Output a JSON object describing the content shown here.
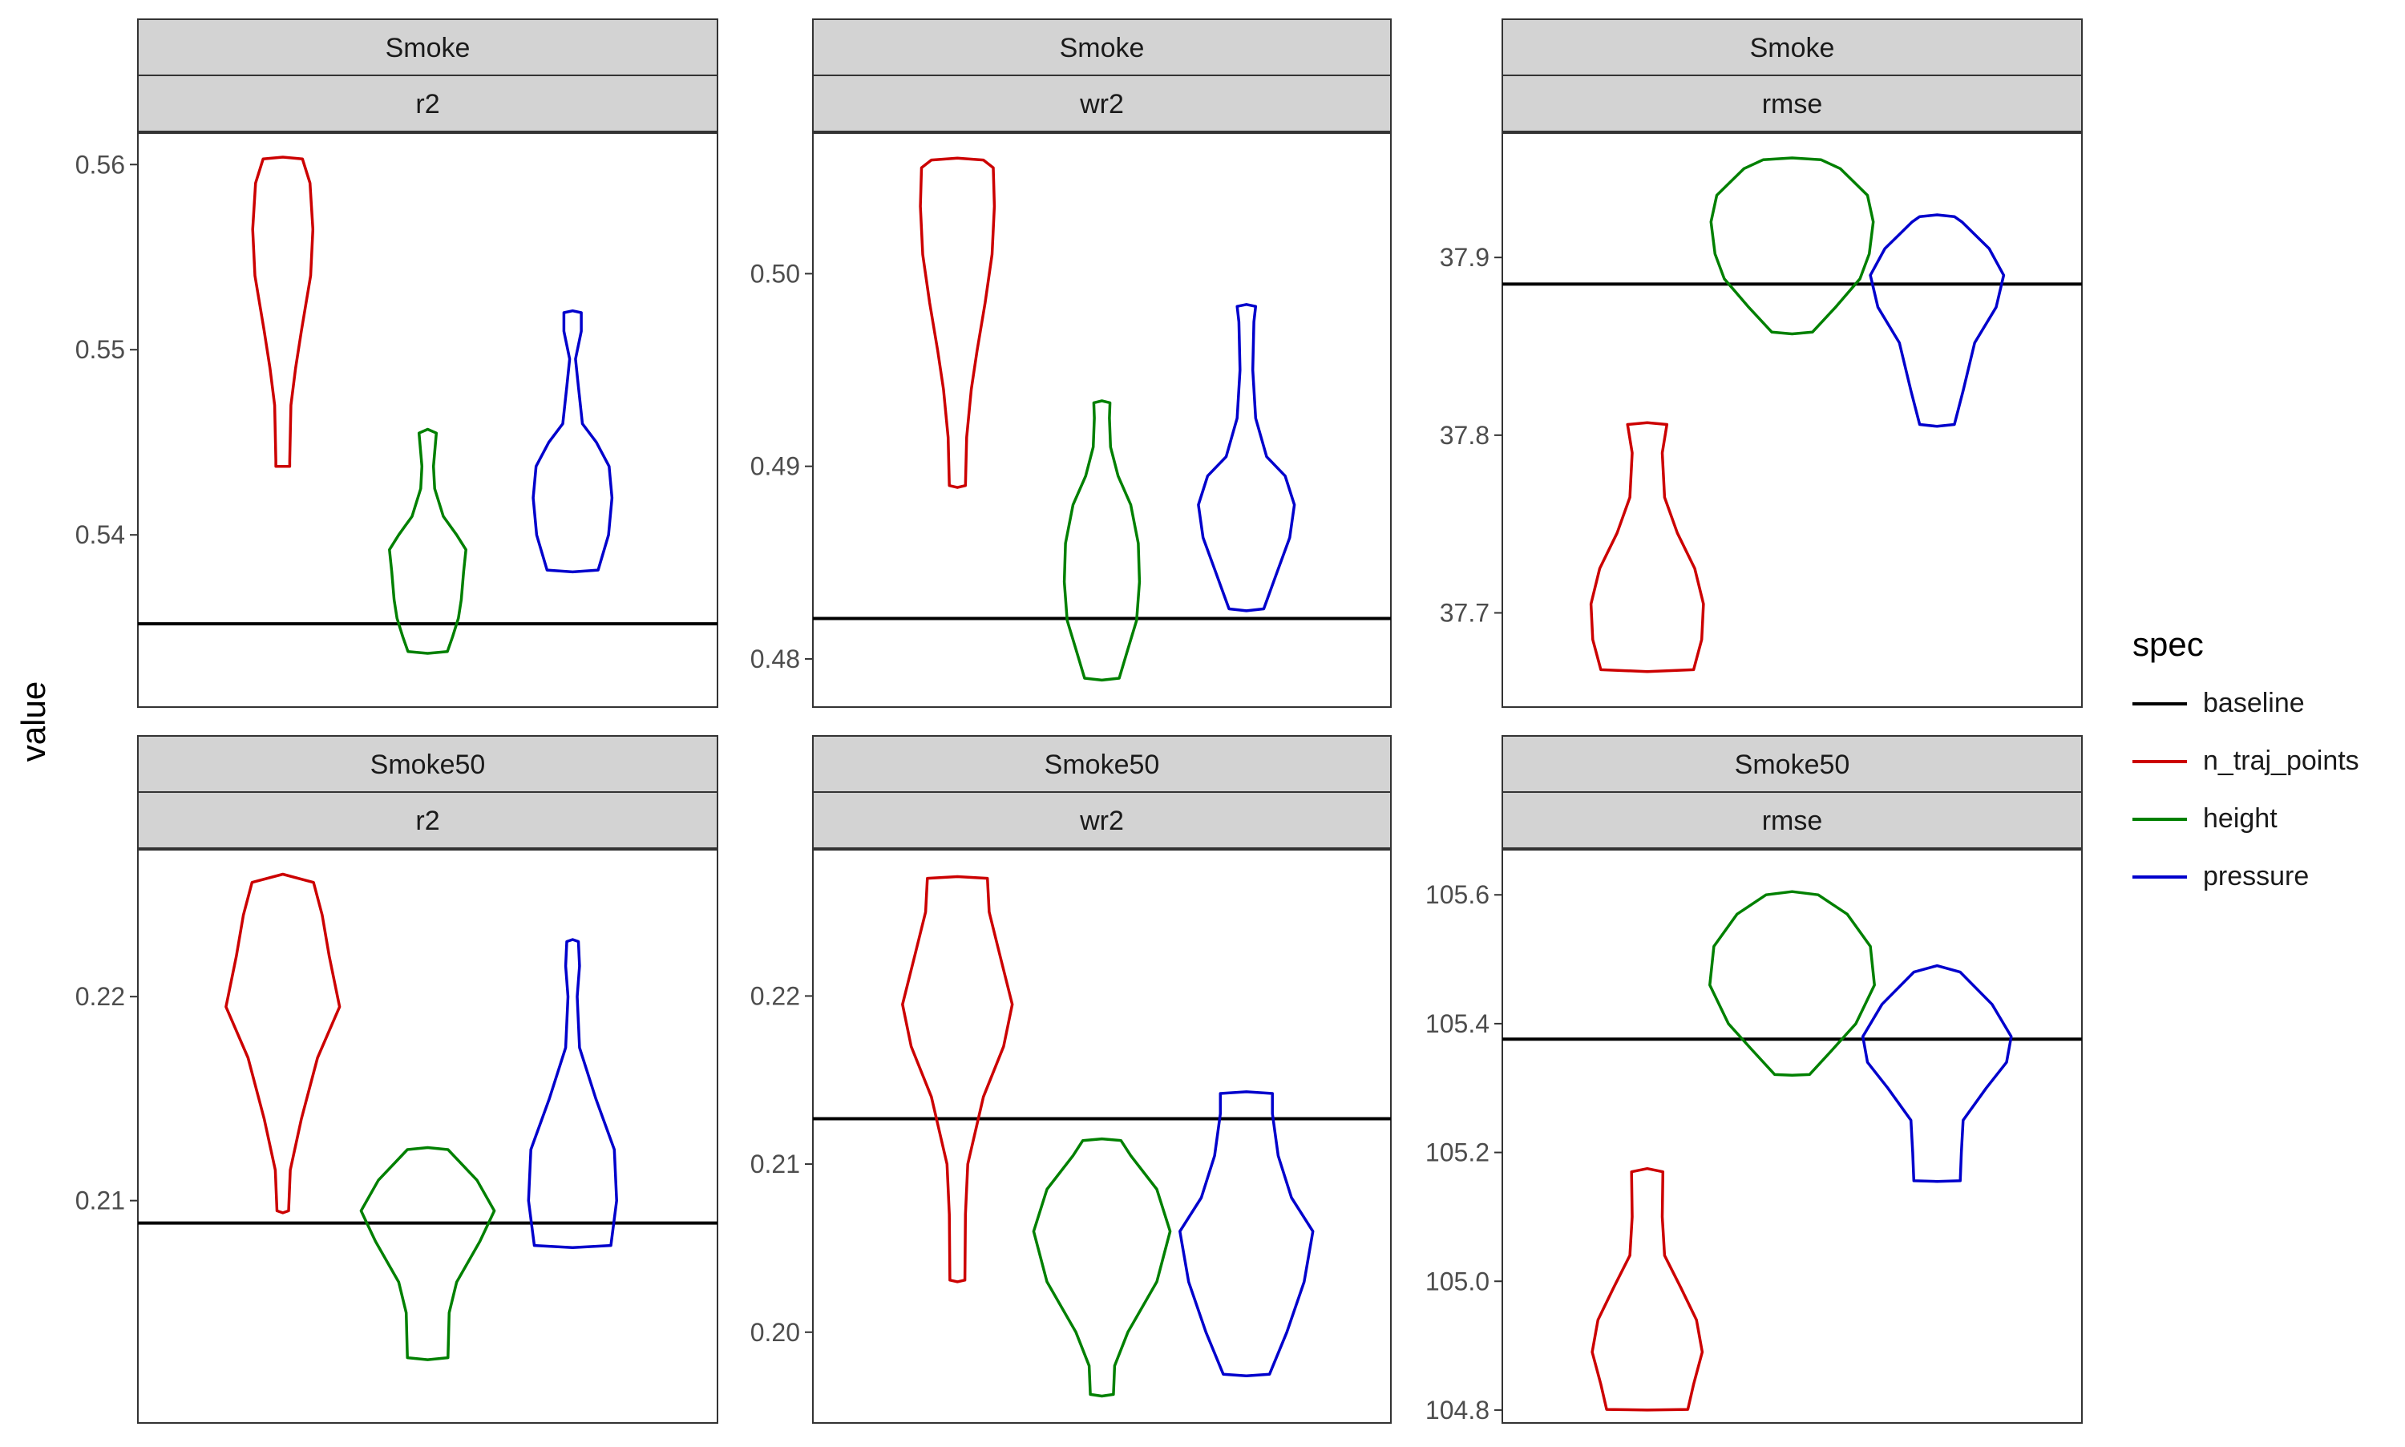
{
  "y_axis_label": "value",
  "legend": {
    "title": "spec",
    "items": [
      {
        "label": "baseline",
        "color": "#000000"
      },
      {
        "label": "n_traj_points",
        "color": "#cc0000"
      },
      {
        "label": "height",
        "color": "#008000"
      },
      {
        "label": "pressure",
        "color": "#0000cc"
      }
    ]
  },
  "chart_data": [
    {
      "type": "violin",
      "row": 0,
      "col": 0,
      "strip_top": "Smoke",
      "strip_bottom": "r2",
      "ylim": [
        0.5307,
        0.5617
      ],
      "yticks": [
        0.54,
        0.55,
        0.56
      ],
      "ytick_labels": [
        "0.54",
        "0.55",
        "0.56"
      ],
      "baseline": 0.5352,
      "violins": [
        {
          "name": "n_traj_points",
          "color": "#cc0000",
          "center": 0.25,
          "profile": [
            [
              0.5437,
              0.012
            ],
            [
              0.544,
              0.012
            ],
            [
              0.547,
              0.014
            ],
            [
              0.549,
              0.022
            ],
            [
              0.551,
              0.032
            ],
            [
              0.554,
              0.048
            ],
            [
              0.5565,
              0.052
            ],
            [
              0.559,
              0.047
            ],
            [
              0.5603,
              0.034
            ],
            [
              0.5604,
              0.0
            ]
          ]
        },
        {
          "name": "height",
          "color": "#008000",
          "center": 0.5,
          "profile": [
            [
              0.5336,
              0.0
            ],
            [
              0.5337,
              0.034
            ],
            [
              0.5345,
              0.043
            ],
            [
              0.5355,
              0.053
            ],
            [
              0.5365,
              0.058
            ],
            [
              0.538,
              0.062
            ],
            [
              0.5392,
              0.066
            ],
            [
              0.54,
              0.05
            ],
            [
              0.541,
              0.027
            ],
            [
              0.5425,
              0.012
            ],
            [
              0.5437,
              0.01
            ],
            [
              0.5455,
              0.015
            ],
            [
              0.5457,
              0.0
            ]
          ]
        },
        {
          "name": "pressure",
          "color": "#0000cc",
          "center": 0.75,
          "profile": [
            [
              0.538,
              0.0
            ],
            [
              0.5381,
              0.044
            ],
            [
              0.54,
              0.062
            ],
            [
              0.542,
              0.068
            ],
            [
              0.5437,
              0.063
            ],
            [
              0.545,
              0.041
            ],
            [
              0.546,
              0.017
            ],
            [
              0.548,
              0.01
            ],
            [
              0.5495,
              0.005
            ],
            [
              0.551,
              0.015
            ],
            [
              0.552,
              0.015
            ],
            [
              0.5521,
              0.0
            ]
          ]
        }
      ]
    },
    {
      "type": "violin",
      "row": 0,
      "col": 1,
      "strip_top": "Smoke",
      "strip_bottom": "wr2",
      "ylim": [
        0.4775,
        0.5073
      ],
      "yticks": [
        0.48,
        0.49,
        0.5
      ],
      "ytick_labels": [
        "0.48",
        "0.49",
        "0.50"
      ],
      "baseline": 0.4821,
      "violins": [
        {
          "name": "n_traj_points",
          "color": "#cc0000",
          "center": 0.25,
          "profile": [
            [
              0.4889,
              0.0
            ],
            [
              0.489,
              0.014
            ],
            [
              0.4915,
              0.016
            ],
            [
              0.494,
              0.024
            ],
            [
              0.496,
              0.034
            ],
            [
              0.4985,
              0.048
            ],
            [
              0.501,
              0.06
            ],
            [
              0.5035,
              0.064
            ],
            [
              0.5055,
              0.062
            ],
            [
              0.5059,
              0.045
            ],
            [
              0.506,
              0.0
            ]
          ]
        },
        {
          "name": "height",
          "color": "#008000",
          "center": 0.5,
          "profile": [
            [
              0.4789,
              0.0
            ],
            [
              0.479,
              0.03
            ],
            [
              0.4805,
              0.045
            ],
            [
              0.482,
              0.06
            ],
            [
              0.484,
              0.065
            ],
            [
              0.486,
              0.063
            ],
            [
              0.488,
              0.05
            ],
            [
              0.4895,
              0.028
            ],
            [
              0.491,
              0.015
            ],
            [
              0.4925,
              0.013
            ],
            [
              0.4933,
              0.014
            ],
            [
              0.4934,
              0.0
            ]
          ]
        },
        {
          "name": "pressure",
          "color": "#0000cc",
          "center": 0.75,
          "profile": [
            [
              0.4825,
              0.0
            ],
            [
              0.4826,
              0.03
            ],
            [
              0.4845,
              0.053
            ],
            [
              0.4863,
              0.075
            ],
            [
              0.488,
              0.083
            ],
            [
              0.4895,
              0.067
            ],
            [
              0.4905,
              0.035
            ],
            [
              0.4925,
              0.016
            ],
            [
              0.495,
              0.011
            ],
            [
              0.4975,
              0.013
            ],
            [
              0.4983,
              0.016
            ],
            [
              0.4984,
              0.0
            ]
          ]
        }
      ]
    },
    {
      "type": "violin",
      "row": 0,
      "col": 2,
      "strip_top": "Smoke",
      "strip_bottom": "rmse",
      "ylim": [
        37.647,
        37.97
      ],
      "yticks": [
        37.7,
        37.8,
        37.9
      ],
      "ytick_labels": [
        "37.7",
        "37.8",
        "37.9"
      ],
      "baseline": 37.885,
      "violins": [
        {
          "name": "n_traj_points",
          "color": "#cc0000",
          "center": 0.25,
          "profile": [
            [
              37.667,
              0.0
            ],
            [
              37.668,
              0.08
            ],
            [
              37.685,
              0.094
            ],
            [
              37.705,
              0.097
            ],
            [
              37.725,
              0.082
            ],
            [
              37.745,
              0.052
            ],
            [
              37.765,
              0.03
            ],
            [
              37.79,
              0.026
            ],
            [
              37.806,
              0.034
            ],
            [
              37.807,
              0.0
            ]
          ]
        },
        {
          "name": "height",
          "color": "#008000",
          "center": 0.5,
          "profile": [
            [
              37.857,
              0.0
            ],
            [
              37.858,
              0.035
            ],
            [
              37.872,
              0.075
            ],
            [
              37.888,
              0.117
            ],
            [
              37.902,
              0.133
            ],
            [
              37.92,
              0.14
            ],
            [
              37.935,
              0.13
            ],
            [
              37.95,
              0.083
            ],
            [
              37.955,
              0.05
            ],
            [
              37.956,
              0.0
            ]
          ]
        },
        {
          "name": "pressure",
          "color": "#0000cc",
          "center": 0.75,
          "profile": [
            [
              37.805,
              0.0
            ],
            [
              37.806,
              0.03
            ],
            [
              37.825,
              0.045
            ],
            [
              37.852,
              0.065
            ],
            [
              37.872,
              0.102
            ],
            [
              37.89,
              0.115
            ],
            [
              37.905,
              0.09
            ],
            [
              37.92,
              0.043
            ],
            [
              37.923,
              0.03
            ],
            [
              37.924,
              0.0
            ]
          ]
        }
      ]
    },
    {
      "type": "violin",
      "row": 1,
      "col": 0,
      "strip_top": "Smoke50",
      "strip_bottom": "r2",
      "ylim": [
        0.1991,
        0.2272
      ],
      "yticks": [
        0.21,
        0.22
      ],
      "ytick_labels": [
        "0.21",
        "0.22"
      ],
      "baseline": 0.2089,
      "violins": [
        {
          "name": "n_traj_points",
          "color": "#cc0000",
          "center": 0.25,
          "profile": [
            [
              0.2094,
              0.0
            ],
            [
              0.2095,
              0.01
            ],
            [
              0.2115,
              0.013
            ],
            [
              0.214,
              0.032
            ],
            [
              0.217,
              0.06
            ],
            [
              0.2195,
              0.098
            ],
            [
              0.222,
              0.08
            ],
            [
              0.224,
              0.068
            ],
            [
              0.2256,
              0.053
            ],
            [
              0.226,
              0.0
            ]
          ]
        },
        {
          "name": "height",
          "color": "#008000",
          "center": 0.5,
          "profile": [
            [
              0.2022,
              0.0
            ],
            [
              0.2023,
              0.035
            ],
            [
              0.2045,
              0.037
            ],
            [
              0.206,
              0.05
            ],
            [
              0.208,
              0.09
            ],
            [
              0.2095,
              0.115
            ],
            [
              0.211,
              0.085
            ],
            [
              0.2125,
              0.035
            ],
            [
              0.2126,
              0.0
            ]
          ]
        },
        {
          "name": "pressure",
          "color": "#0000cc",
          "center": 0.75,
          "profile": [
            [
              0.2077,
              0.0
            ],
            [
              0.2078,
              0.066
            ],
            [
              0.21,
              0.076
            ],
            [
              0.2125,
              0.072
            ],
            [
              0.215,
              0.04
            ],
            [
              0.2175,
              0.012
            ],
            [
              0.22,
              0.008
            ],
            [
              0.2215,
              0.012
            ],
            [
              0.2227,
              0.01
            ],
            [
              0.2228,
              0.0
            ]
          ]
        }
      ]
    },
    {
      "type": "violin",
      "row": 1,
      "col": 1,
      "strip_top": "Smoke50",
      "strip_bottom": "wr2",
      "ylim": [
        0.1946,
        0.2287
      ],
      "yticks": [
        0.2,
        0.21,
        0.22
      ],
      "ytick_labels": [
        "0.20",
        "0.21",
        "0.22"
      ],
      "baseline": 0.2127,
      "violins": [
        {
          "name": "n_traj_points",
          "color": "#cc0000",
          "center": 0.25,
          "profile": [
            [
              0.203,
              0.0
            ],
            [
              0.2031,
              0.013
            ],
            [
              0.207,
              0.014
            ],
            [
              0.21,
              0.018
            ],
            [
              0.214,
              0.045
            ],
            [
              0.217,
              0.08
            ],
            [
              0.2195,
              0.095
            ],
            [
              0.2225,
              0.073
            ],
            [
              0.225,
              0.055
            ],
            [
              0.227,
              0.052
            ],
            [
              0.2271,
              0.0
            ]
          ]
        },
        {
          "name": "height",
          "color": "#008000",
          "center": 0.5,
          "profile": [
            [
              0.1962,
              0.0
            ],
            [
              0.1963,
              0.02
            ],
            [
              0.198,
              0.022
            ],
            [
              0.2,
              0.045
            ],
            [
              0.203,
              0.095
            ],
            [
              0.206,
              0.118
            ],
            [
              0.2085,
              0.095
            ],
            [
              0.2105,
              0.05
            ],
            [
              0.2114,
              0.033
            ],
            [
              0.2115,
              0.0
            ]
          ]
        },
        {
          "name": "pressure",
          "color": "#0000cc",
          "center": 0.75,
          "profile": [
            [
              0.1974,
              0.0
            ],
            [
              0.1975,
              0.04
            ],
            [
              0.2,
              0.07
            ],
            [
              0.203,
              0.1
            ],
            [
              0.206,
              0.115
            ],
            [
              0.208,
              0.078
            ],
            [
              0.2105,
              0.055
            ],
            [
              0.213,
              0.045
            ],
            [
              0.2142,
              0.045
            ],
            [
              0.2143,
              0.0
            ]
          ]
        }
      ]
    },
    {
      "type": "violin",
      "row": 1,
      "col": 2,
      "strip_top": "Smoke50",
      "strip_bottom": "rmse",
      "ylim": [
        104.78,
        105.67
      ],
      "yticks": [
        104.8,
        105.0,
        105.2,
        105.4,
        105.6
      ],
      "ytick_labels": [
        "104.8",
        "105.0",
        "105.2",
        "105.4",
        "105.6"
      ],
      "baseline": 105.376,
      "violins": [
        {
          "name": "n_traj_points",
          "color": "#cc0000",
          "center": 0.25,
          "profile": [
            [
              104.8,
              0.0
            ],
            [
              104.801,
              0.07
            ],
            [
              104.84,
              0.08
            ],
            [
              104.89,
              0.095
            ],
            [
              104.94,
              0.085
            ],
            [
              104.99,
              0.058
            ],
            [
              105.04,
              0.03
            ],
            [
              105.1,
              0.026
            ],
            [
              105.17,
              0.027
            ],
            [
              105.175,
              0.0
            ]
          ]
        },
        {
          "name": "height",
          "color": "#008000",
          "center": 0.5,
          "profile": [
            [
              105.32,
              0.0
            ],
            [
              105.321,
              0.03
            ],
            [
              105.36,
              0.07
            ],
            [
              105.4,
              0.11
            ],
            [
              105.46,
              0.142
            ],
            [
              105.52,
              0.135
            ],
            [
              105.57,
              0.095
            ],
            [
              105.6,
              0.045
            ],
            [
              105.605,
              0.0
            ]
          ]
        },
        {
          "name": "pressure",
          "color": "#0000cc",
          "center": 0.75,
          "profile": [
            [
              105.155,
              0.0
            ],
            [
              105.156,
              0.04
            ],
            [
              105.2,
              0.042
            ],
            [
              105.25,
              0.045
            ],
            [
              105.3,
              0.085
            ],
            [
              105.34,
              0.12
            ],
            [
              105.38,
              0.128
            ],
            [
              105.43,
              0.095
            ],
            [
              105.48,
              0.04
            ],
            [
              105.49,
              0.0
            ]
          ]
        }
      ]
    }
  ]
}
